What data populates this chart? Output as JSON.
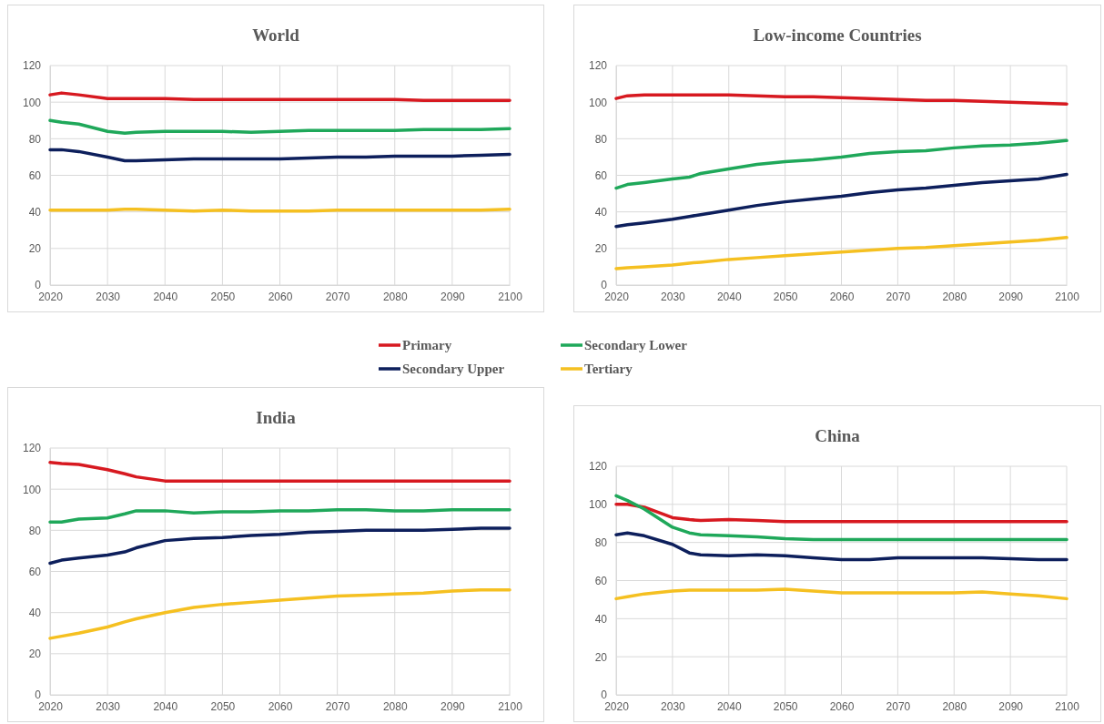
{
  "chart_data": [
    {
      "type": "line",
      "title": "World",
      "x": [
        2020,
        2022,
        2025,
        2030,
        2033,
        2035,
        2040,
        2045,
        2050,
        2055,
        2060,
        2065,
        2070,
        2075,
        2080,
        2085,
        2090,
        2095,
        2100
      ],
      "xlim": [
        2020,
        2100
      ],
      "xticks": [
        2020,
        2030,
        2040,
        2050,
        2060,
        2070,
        2080,
        2090,
        2100
      ],
      "ylim": [
        0,
        120
      ],
      "yticks": [
        0,
        20,
        40,
        60,
        80,
        100,
        120
      ],
      "grid": true,
      "legend": "bottom",
      "line_style": "solid",
      "series": [
        {
          "name": "Primary",
          "color": "#d71920",
          "values": [
            104,
            105,
            104,
            102,
            102,
            102,
            102,
            101.5,
            101.5,
            101.5,
            101.5,
            101.5,
            101.5,
            101.5,
            101.5,
            101,
            101,
            101,
            101
          ]
        },
        {
          "name": "Secondary Lower",
          "color": "#1fa85a",
          "values": [
            90,
            89,
            88,
            84,
            83,
            83.5,
            84,
            84,
            84,
            83.5,
            84,
            84.5,
            84.5,
            84.5,
            84.5,
            85,
            85,
            85,
            85.5
          ]
        },
        {
          "name": "Secondary Upper",
          "color": "#0d1f5c",
          "values": [
            74,
            74,
            73,
            70,
            68,
            68,
            68.5,
            69,
            69,
            69,
            69,
            69.5,
            70,
            70,
            70.5,
            70.5,
            70.5,
            71,
            71.5
          ]
        },
        {
          "name": "Tertiary",
          "color": "#f5c021",
          "values": [
            41,
            41,
            41,
            41,
            41.5,
            41.5,
            41,
            40.5,
            41,
            40.5,
            40.5,
            40.5,
            41,
            41,
            41,
            41,
            41,
            41,
            41.5
          ]
        }
      ]
    },
    {
      "type": "line",
      "title": "Low-income Countries",
      "x": [
        2020,
        2022,
        2025,
        2030,
        2033,
        2035,
        2040,
        2045,
        2050,
        2055,
        2060,
        2065,
        2070,
        2075,
        2080,
        2085,
        2090,
        2095,
        2100
      ],
      "xlim": [
        2020,
        2100
      ],
      "xticks": [
        2020,
        2030,
        2040,
        2050,
        2060,
        2070,
        2080,
        2090,
        2100
      ],
      "ylim": [
        0,
        120
      ],
      "yticks": [
        0,
        20,
        40,
        60,
        80,
        100,
        120
      ],
      "grid": true,
      "line_style": "solid",
      "series": [
        {
          "color": "#d71920",
          "values": [
            102,
            103.5,
            104,
            104,
            104,
            104,
            104,
            103.5,
            103,
            103,
            102.5,
            102,
            101.5,
            101,
            101,
            100.5,
            100,
            99.5,
            99
          ]
        },
        {
          "color": "#1fa85a",
          "values": [
            53,
            55,
            56,
            58,
            59,
            61,
            63.5,
            66,
            67.5,
            68.5,
            70,
            72,
            73,
            73.5,
            75,
            76,
            76.5,
            77.5,
            79
          ]
        },
        {
          "color": "#0d1f5c",
          "values": [
            32,
            33,
            34,
            36,
            37.5,
            38.5,
            41,
            43.5,
            45.5,
            47,
            48.5,
            50.5,
            52,
            53,
            54.5,
            56,
            57,
            58,
            60.5
          ]
        },
        {
          "color": "#f5c021",
          "values": [
            9,
            9.5,
            10,
            11,
            12,
            12.5,
            14,
            15,
            16,
            17,
            18,
            19,
            20,
            20.5,
            21.5,
            22.5,
            23.5,
            24.5,
            26
          ]
        }
      ]
    },
    {
      "type": "line",
      "title": "India",
      "x": [
        2020,
        2022,
        2025,
        2030,
        2033,
        2035,
        2040,
        2045,
        2050,
        2055,
        2060,
        2065,
        2070,
        2075,
        2080,
        2085,
        2090,
        2095,
        2100
      ],
      "xlim": [
        2020,
        2100
      ],
      "xticks": [
        2020,
        2030,
        2040,
        2050,
        2060,
        2070,
        2080,
        2090,
        2100
      ],
      "ylim": [
        0,
        120
      ],
      "yticks": [
        0,
        20,
        40,
        60,
        80,
        100,
        120
      ],
      "grid": true,
      "line_style": "solid",
      "series": [
        {
          "color": "#d71920",
          "values": [
            113,
            112.5,
            112,
            109.5,
            107.5,
            106,
            104,
            104,
            104,
            104,
            104,
            104,
            104,
            104,
            104,
            104,
            104,
            104,
            104
          ]
        },
        {
          "color": "#1fa85a",
          "values": [
            84,
            84,
            85.5,
            86,
            88,
            89.5,
            89.5,
            88.5,
            89,
            89,
            89.5,
            89.5,
            90,
            90,
            89.5,
            89.5,
            90,
            90,
            90
          ]
        },
        {
          "color": "#0d1f5c",
          "values": [
            64,
            65.5,
            66.5,
            68,
            69.5,
            71.5,
            75,
            76,
            76.5,
            77.5,
            78,
            79,
            79.5,
            80,
            80,
            80,
            80.5,
            81,
            81
          ]
        },
        {
          "color": "#f5c021",
          "values": [
            27.5,
            28.5,
            30,
            33,
            35.5,
            37,
            40,
            42.5,
            44,
            45,
            46,
            47,
            48,
            48.5,
            49,
            49.5,
            50.5,
            51,
            51
          ]
        }
      ]
    },
    {
      "type": "line",
      "title": "China",
      "x": [
        2020,
        2022,
        2025,
        2030,
        2033,
        2035,
        2040,
        2045,
        2050,
        2055,
        2060,
        2065,
        2070,
        2075,
        2080,
        2085,
        2090,
        2095,
        2100
      ],
      "xlim": [
        2020,
        2100
      ],
      "xticks": [
        2020,
        2030,
        2040,
        2050,
        2060,
        2070,
        2080,
        2090,
        2100
      ],
      "ylim": [
        0,
        120
      ],
      "yticks": [
        0,
        20,
        40,
        60,
        80,
        100,
        120
      ],
      "grid": true,
      "line_style": "solid",
      "series": [
        {
          "color": "#d71920",
          "values": [
            100,
            100,
            98.5,
            93,
            92,
            91.5,
            92,
            91.5,
            91,
            91,
            91,
            91,
            91,
            91,
            91,
            91,
            91,
            91,
            91
          ]
        },
        {
          "color": "#1fa85a",
          "values": [
            104.5,
            102,
            97.5,
            88,
            85,
            84,
            83.5,
            83,
            82,
            81.5,
            81.5,
            81.5,
            81.5,
            81.5,
            81.5,
            81.5,
            81.5,
            81.5,
            81.5
          ]
        },
        {
          "color": "#0d1f5c",
          "values": [
            84,
            85,
            83.5,
            79,
            74.5,
            73.5,
            73,
            73.5,
            73,
            72,
            71,
            71,
            72,
            72,
            72,
            72,
            71.5,
            71,
            71
          ]
        },
        {
          "color": "#f5c021",
          "values": [
            50.5,
            51.5,
            53,
            54.5,
            55,
            55,
            55,
            55,
            55.5,
            54.5,
            53.5,
            53.5,
            53.5,
            53.5,
            53.5,
            54,
            53,
            52,
            50.5
          ]
        }
      ]
    }
  ]
}
